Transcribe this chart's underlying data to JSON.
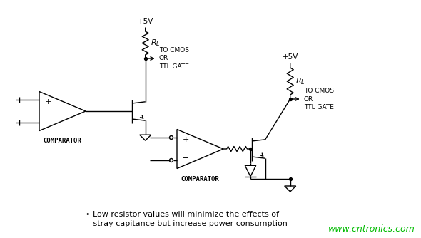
{
  "background_color": "#ffffff",
  "line_color": "#000000",
  "text_color": "#000000",
  "watermark_color": "#00bb00",
  "watermark_text": "www.cntronics.com",
  "watermark_fontsize": 9,
  "annotation_line1": "• Low resistor values will minimize the effects of",
  "annotation_line2": "   stray capitance but increase power consumption",
  "annotation_fontsize": 8,
  "label_comparator1": "COMPARATOR",
  "label_comparator2": "COMPARATOR",
  "label_5v_1": "+5V",
  "label_5v_2": "+5V",
  "label_tocmos1": "TO CMOS\nOR\nTTL GATE",
  "label_tocmos2": "TO CMOS\nOR\nTTL GATE",
  "figsize": [
    5.9,
    3.34
  ],
  "dpi": 100
}
